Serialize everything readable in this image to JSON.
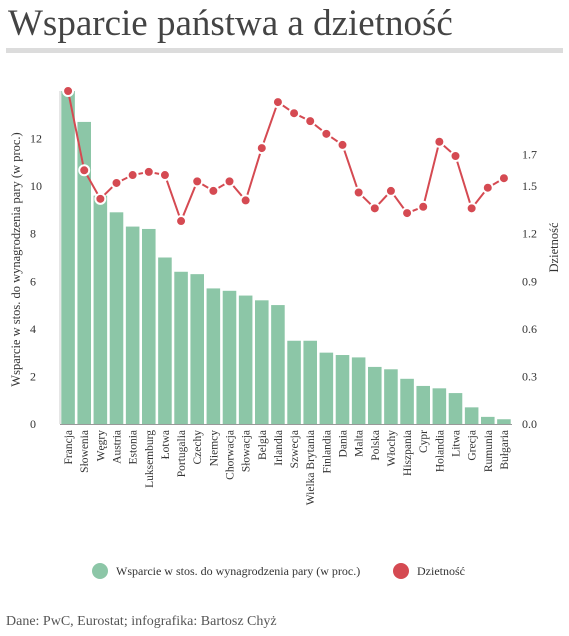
{
  "title": "Wsparcie państwa a dzietność",
  "source": "Dane: PwC, Eurostat;  infografika: Bartosz Chyż",
  "colors": {
    "bars": "#8cc6a7",
    "line": "#d54a52",
    "axis": "#999999",
    "text": "#333333"
  },
  "chart_data": {
    "type": "bar",
    "categories": [
      "Francja",
      "Słowenia",
      "Węgry",
      "Austria",
      "Estonia",
      "Luksemburg",
      "Łotwa",
      "Portugalia",
      "Czechy",
      "Niemcy",
      "Chorwacja",
      "Słowacja",
      "Belgia",
      "Irlandia",
      "Szwecja",
      "Wielka Brytania",
      "Finlandia",
      "Dania",
      "Malta",
      "Polska",
      "Włochy",
      "Hiszpania",
      "Cypr",
      "Holandia",
      "Litwa",
      "Grecja",
      "Rumunia",
      "Bułgaria"
    ],
    "ylabel": "Wsparcie w stos. do wynagrodzenia pary (w proc.)",
    "y2label": "Dzietność",
    "ylim": [
      0,
      14
    ],
    "y2lim": [
      0,
      2.1
    ],
    "yticks": [
      "0",
      "2",
      "4",
      "6",
      "8",
      "10",
      "12"
    ],
    "y2ticks": [
      "0.0",
      "0.3",
      "0.6",
      "0.9",
      "1.2",
      "1.5",
      "1.7"
    ],
    "series": [
      {
        "name": "Wsparcie w stos. do wynagrodzenia pary (w proc.)",
        "type": "bar",
        "axis": "left",
        "values": [
          14.0,
          12.7,
          9.6,
          8.9,
          8.3,
          8.2,
          7.0,
          6.4,
          6.3,
          5.7,
          5.6,
          5.4,
          5.2,
          5.0,
          3.5,
          3.5,
          3.0,
          2.9,
          2.8,
          2.4,
          2.3,
          1.9,
          1.6,
          1.5,
          1.3,
          0.7,
          0.3,
          0.2
        ]
      },
      {
        "name": "Dzietność",
        "type": "line",
        "axis": "right",
        "values": [
          2.1,
          1.6,
          1.42,
          1.52,
          1.57,
          1.59,
          1.57,
          1.28,
          1.53,
          1.47,
          1.53,
          1.41,
          1.74,
          2.03,
          1.96,
          1.91,
          1.83,
          1.76,
          1.46,
          1.36,
          1.47,
          1.33,
          1.37,
          1.78,
          1.69,
          1.36,
          1.49,
          1.55
        ]
      }
    ],
    "legend": {
      "position": "bottom"
    }
  }
}
